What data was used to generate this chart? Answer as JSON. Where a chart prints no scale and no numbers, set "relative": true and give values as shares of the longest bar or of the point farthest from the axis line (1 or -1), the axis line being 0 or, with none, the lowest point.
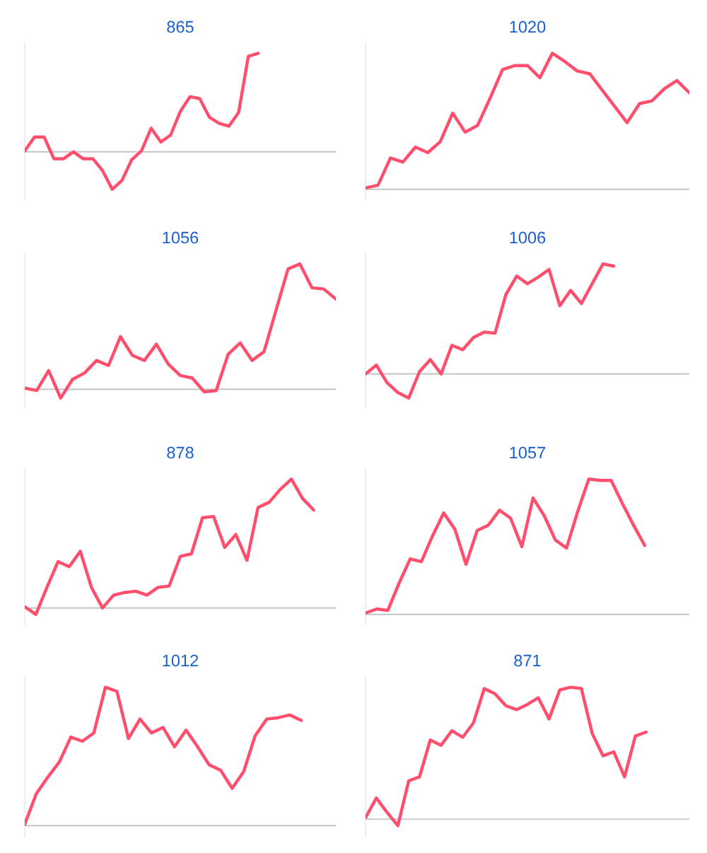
{
  "chart_data": [
    {
      "type": "line",
      "title": "865",
      "relative": true,
      "color": "#ff4f6d",
      "categories": [
        null,
        null,
        null,
        null,
        null,
        null,
        null,
        null,
        null,
        null,
        null,
        null,
        null,
        null,
        null,
        null,
        null,
        null,
        null,
        null,
        null,
        null,
        null,
        null,
        null,
        null,
        null,
        null,
        null,
        null,
        null,
        null,
        null
      ],
      "values": [
        0.01,
        0.15,
        0.15,
        -0.07,
        -0.07,
        0,
        -0.07,
        -0.07,
        -0.19,
        -0.38,
        -0.29,
        -0.08,
        0.01,
        0.24,
        0.1,
        0.17,
        0.41,
        0.56,
        0.54,
        0.35,
        0.29,
        0.26,
        0.4,
        0.97,
        1,
        null,
        null,
        null,
        null,
        null,
        null,
        null,
        null
      ]
    },
    {
      "type": "line",
      "title": "1020",
      "relative": true,
      "color": "#ff4f6d",
      "categories": [
        null,
        null,
        null,
        null,
        null,
        null,
        null,
        null,
        null,
        null,
        null,
        null,
        null,
        null,
        null,
        null,
        null,
        null,
        null,
        null,
        null,
        null,
        null,
        null,
        null,
        null,
        null
      ],
      "values": [
        0.01,
        0.03,
        0.23,
        0.2,
        0.31,
        0.27,
        0.35,
        0.56,
        0.42,
        0.47,
        0.67,
        0.88,
        0.91,
        0.91,
        0.82,
        1,
        0.94,
        0.87,
        0.85,
        0.73,
        0.61,
        0.49,
        0.63,
        0.65,
        0.74,
        0.8,
        0.71
      ]
    },
    {
      "type": "line",
      "title": "1056",
      "relative": true,
      "color": "#ff4f6d",
      "categories": [
        null,
        null,
        null,
        null,
        null,
        null,
        null,
        null,
        null,
        null,
        null,
        null,
        null,
        null,
        null,
        null,
        null,
        null,
        null,
        null,
        null,
        null,
        null,
        null,
        null,
        null,
        null
      ],
      "values": [
        0.01,
        -0.01,
        0.15,
        -0.07,
        0.08,
        0.13,
        0.23,
        0.19,
        0.42,
        0.27,
        0.23,
        0.36,
        0.2,
        0.11,
        0.09,
        -0.02,
        -0.01,
        0.28,
        0.37,
        0.23,
        0.3,
        0.63,
        0.96,
        1,
        0.81,
        0.8,
        0.72
      ]
    },
    {
      "type": "line",
      "title": "1006",
      "relative": true,
      "color": "#ff4f6d",
      "categories": [
        null,
        null,
        null,
        null,
        null,
        null,
        null,
        null,
        null,
        null,
        null,
        null,
        null,
        null,
        null,
        null,
        null,
        null,
        null,
        null,
        null,
        null,
        null,
        null,
        null,
        null,
        null,
        null,
        null,
        null,
        null
      ],
      "values": [
        0,
        0.08,
        -0.08,
        -0.17,
        -0.22,
        0.02,
        0.13,
        0,
        0.26,
        0.22,
        0.33,
        0.38,
        0.37,
        0.72,
        0.89,
        0.82,
        0.88,
        0.95,
        0.62,
        0.76,
        0.64,
        0.82,
        1,
        0.98,
        null,
        null,
        null,
        null,
        null,
        null,
        null
      ]
    },
    {
      "type": "line",
      "title": "878",
      "relative": true,
      "color": "#ff4f6d",
      "categories": [
        null,
        null,
        null,
        null,
        null,
        null,
        null,
        null,
        null,
        null,
        null,
        null,
        null,
        null,
        null,
        null,
        null,
        null,
        null,
        null,
        null,
        null,
        null,
        null,
        null,
        null,
        null,
        null,
        null
      ],
      "values": [
        0.01,
        -0.05,
        0.16,
        0.36,
        0.32,
        0.44,
        0.16,
        0,
        0.1,
        0.12,
        0.13,
        0.1,
        0.16,
        0.17,
        0.4,
        0.42,
        0.7,
        0.71,
        0.47,
        0.57,
        0.37,
        0.78,
        0.82,
        0.92,
        1,
        0.85,
        0.76,
        null,
        null
      ]
    },
    {
      "type": "line",
      "title": "1057",
      "relative": true,
      "color": "#ff4f6d",
      "categories": [
        null,
        null,
        null,
        null,
        null,
        null,
        null,
        null,
        null,
        null,
        null,
        null,
        null,
        null,
        null,
        null,
        null,
        null,
        null,
        null,
        null,
        null,
        null,
        null,
        null,
        null,
        null,
        null,
        null,
        null
      ],
      "values": [
        0.01,
        0.04,
        0.03,
        0.23,
        0.41,
        0.39,
        0.58,
        0.75,
        0.63,
        0.37,
        0.62,
        0.66,
        0.77,
        0.71,
        0.5,
        0.86,
        0.73,
        0.55,
        0.49,
        0.76,
        1,
        0.99,
        0.99,
        0.82,
        0.66,
        0.51,
        null,
        null,
        null,
        null
      ]
    },
    {
      "type": "line",
      "title": "1012",
      "relative": true,
      "color": "#ff4f6d",
      "categories": [
        null,
        null,
        null,
        null,
        null,
        null,
        null,
        null,
        null,
        null,
        null,
        null,
        null,
        null,
        null,
        null,
        null,
        null,
        null,
        null,
        null,
        null,
        null,
        null,
        null,
        null,
        null,
        null
      ],
      "values": [
        0.01,
        0.23,
        0.35,
        0.46,
        0.64,
        0.61,
        0.67,
        1,
        0.97,
        0.63,
        0.77,
        0.67,
        0.71,
        0.57,
        0.69,
        0.57,
        0.44,
        0.4,
        0.27,
        0.39,
        0.65,
        0.77,
        0.78,
        0.8,
        0.76,
        null,
        null,
        null
      ]
    },
    {
      "type": "line",
      "title": "871",
      "relative": true,
      "color": "#ff4f6d",
      "categories": [
        null,
        null,
        null,
        null,
        null,
        null,
        null,
        null,
        null,
        null,
        null,
        null,
        null,
        null,
        null,
        null,
        null,
        null,
        null,
        null,
        null,
        null,
        null,
        null,
        null,
        null,
        null,
        null,
        null,
        null,
        null
      ],
      "values": [
        0.01,
        0.16,
        0.05,
        -0.05,
        0.29,
        0.32,
        0.6,
        0.56,
        0.67,
        0.62,
        0.73,
        0.99,
        0.95,
        0.86,
        0.83,
        0.87,
        0.92,
        0.76,
        0.98,
        1,
        0.99,
        0.65,
        0.48,
        0.51,
        0.32,
        0.63,
        0.66,
        null,
        null,
        null,
        null
      ]
    }
  ]
}
